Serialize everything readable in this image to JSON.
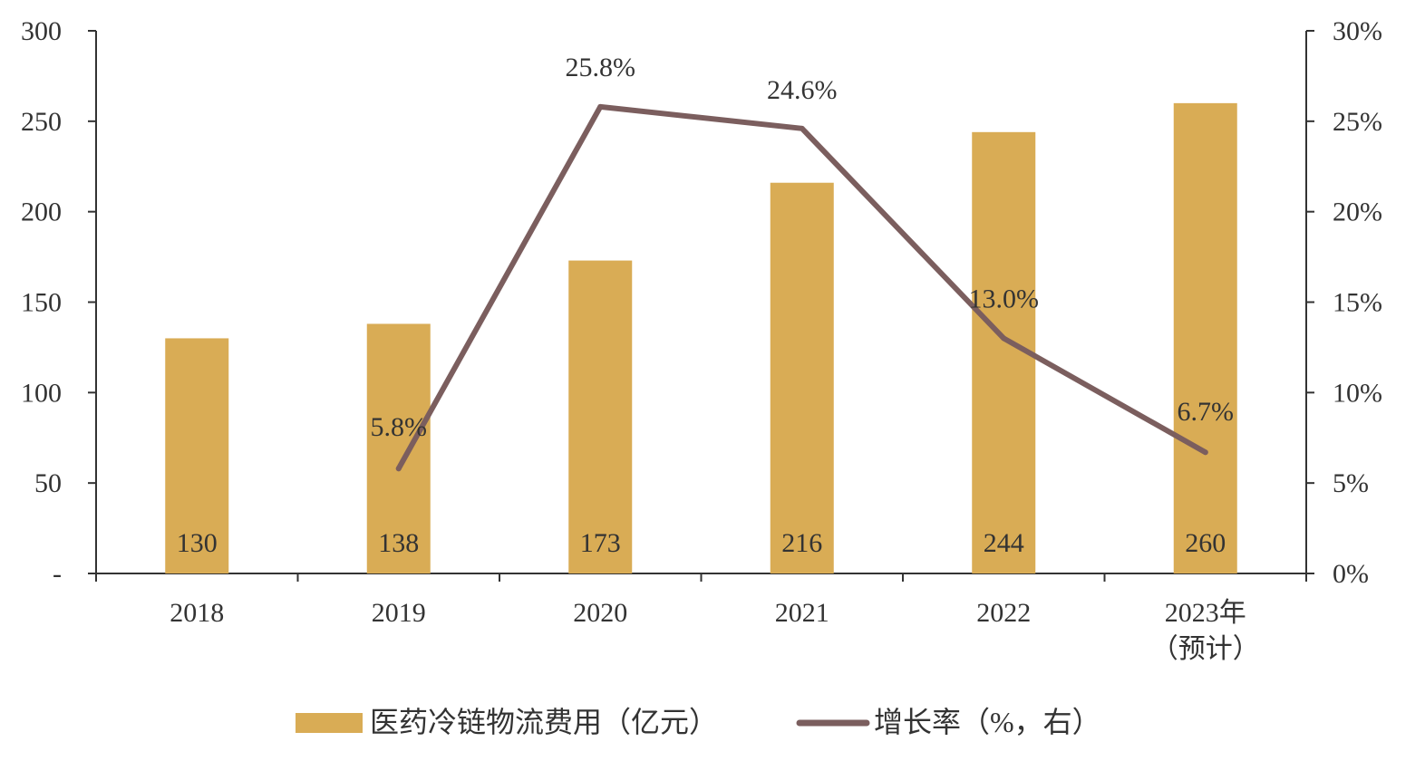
{
  "chart_data": {
    "type": "bar",
    "categories": [
      "2018",
      "2019",
      "2020",
      "2021",
      "2022",
      "2023年（预计）"
    ],
    "category_labels": [
      [
        "2018"
      ],
      [
        "2019"
      ],
      [
        "2020"
      ],
      [
        "2021"
      ],
      [
        "2022"
      ],
      [
        "2023年",
        "（预计）"
      ]
    ],
    "series": [
      {
        "name": "医药冷链物流费用（亿元）",
        "type": "bar",
        "axis": "left",
        "values": [
          130,
          138,
          173,
          216,
          244,
          260
        ],
        "labels": [
          "130",
          "138",
          "173",
          "216",
          "244",
          "260"
        ],
        "color": "#D9AC55"
      },
      {
        "name": "增长率（%，右）",
        "type": "line",
        "axis": "right",
        "x": [
          "2019",
          "2020",
          "2021",
          "2022",
          "2023年（预计）"
        ],
        "values": [
          5.8,
          25.8,
          24.6,
          13.0,
          6.7
        ],
        "labels": [
          "5.8%",
          "25.8%",
          "24.6%",
          "13.0%",
          "6.7%"
        ],
        "color": "#7B5E5E"
      }
    ],
    "y_left": {
      "ylim": [
        0,
        300
      ],
      "ticks": [
        0,
        50,
        100,
        150,
        200,
        250,
        300
      ],
      "tick_labels": [
        "-",
        "50",
        "100",
        "150",
        "200",
        "250",
        "300"
      ]
    },
    "y_right": {
      "ylim": [
        0,
        30
      ],
      "ticks": [
        0,
        5,
        10,
        15,
        20,
        25,
        30
      ],
      "tick_labels": [
        "0%",
        "5%",
        "10%",
        "15%",
        "20%",
        "25%",
        "30%"
      ]
    },
    "title": "",
    "xlabel": "",
    "grid": false,
    "legend_position": "bottom"
  }
}
